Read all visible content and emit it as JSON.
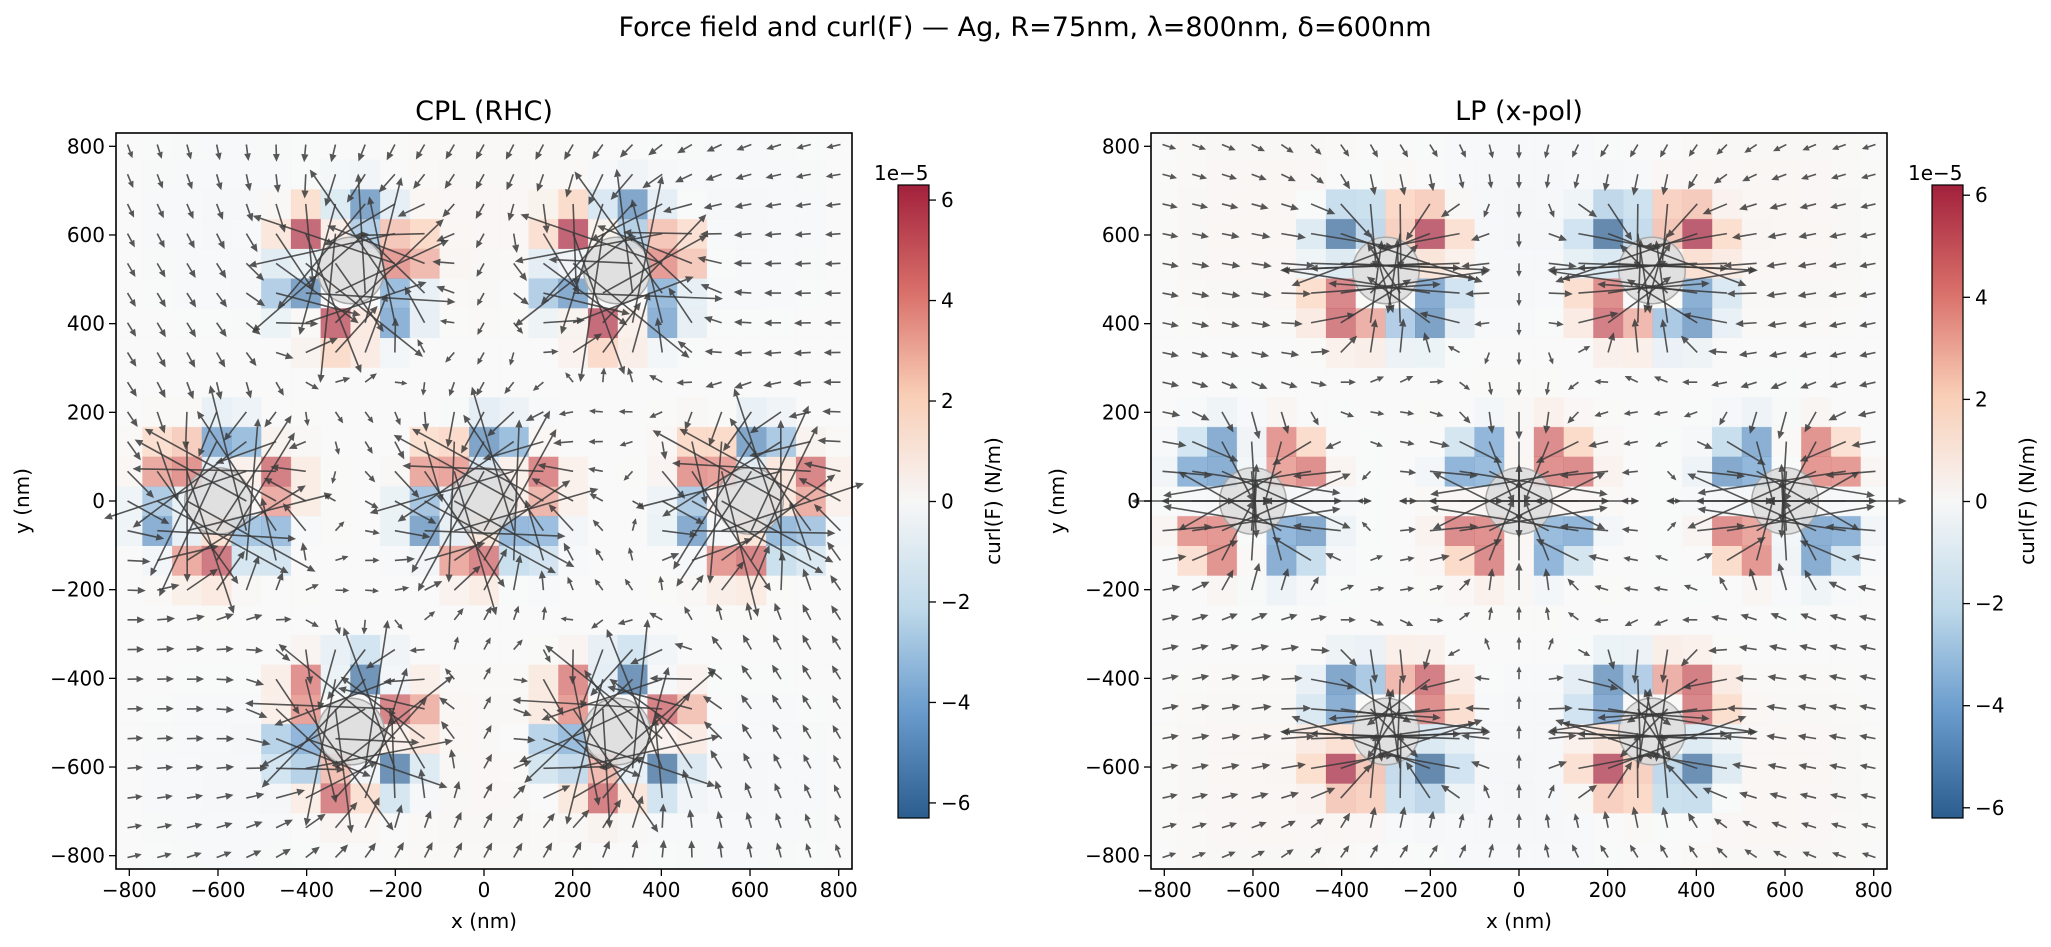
{
  "figure": {
    "suptitle": "Force field and curl(F) — Ag, R=75nm, λ=800nm, δ=600nm"
  },
  "colorbar": {
    "label": "curl(F) (N/m)",
    "offset_text": "1e−5",
    "colors": [
      "#2b5d8f",
      "#6a9ccd",
      "#bed9ea",
      "#f7f7f7",
      "#f9cdb5",
      "#d9706a",
      "#a2213c"
    ],
    "particle_fill": "#dcdcdc",
    "particle_stroke": "#a9a9a9",
    "arrow_color": "#3a3a3a"
  },
  "chart_data": [
    {
      "type": "heatmap",
      "title": "CPL (RHC)",
      "xlabel": "x (nm)",
      "ylabel": "y (nm)",
      "xlim": [
        -830,
        830
      ],
      "ylim": [
        -830,
        830
      ],
      "xticks": [
        -800,
        -600,
        -400,
        -200,
        0,
        200,
        400,
        600,
        800
      ],
      "yticks": [
        -800,
        -600,
        -400,
        -200,
        0,
        200,
        400,
        600,
        800
      ],
      "xtick_labels": [
        "−800",
        "−600",
        "−400",
        "−200",
        "0",
        "200",
        "400",
        "600",
        "800"
      ],
      "ytick_labels": [
        "−800",
        "−600",
        "−400",
        "−200",
        "0",
        "200",
        "400",
        "600",
        "800"
      ],
      "grid_step": 67,
      "particle_radius": 75,
      "particles": [
        [
          -300,
          520
        ],
        [
          300,
          520
        ],
        [
          -600,
          0
        ],
        [
          0,
          0
        ],
        [
          600,
          0
        ],
        [
          -300,
          -520
        ],
        [
          300,
          -520
        ]
      ],
      "polarization": "CPL",
      "colorbar_ticks": [
        6,
        4,
        2,
        0,
        -2,
        -4,
        -6
      ],
      "colorbar_tick_labels": [
        "6",
        "4",
        "2",
        "0",
        "−2",
        "−4",
        "−6"
      ],
      "colorbar_range": [
        -6.3,
        6.3
      ],
      "curl_scale": "×1e−5 N/m"
    },
    {
      "type": "heatmap",
      "title": "LP (x-pol)",
      "xlabel": "x (nm)",
      "ylabel": "y (nm)",
      "xlim": [
        -830,
        830
      ],
      "ylim": [
        -830,
        830
      ],
      "xticks": [
        -800,
        -600,
        -400,
        -200,
        0,
        200,
        400,
        600,
        800
      ],
      "yticks": [
        -800,
        -600,
        -400,
        -200,
        0,
        200,
        400,
        600,
        800
      ],
      "xtick_labels": [
        "−800",
        "−600",
        "−400",
        "−200",
        "0",
        "200",
        "400",
        "600",
        "800"
      ],
      "ytick_labels": [
        "−800",
        "−600",
        "−400",
        "−200",
        "0",
        "200",
        "400",
        "600",
        "800"
      ],
      "grid_step": 67,
      "particle_radius": 75,
      "particles": [
        [
          -300,
          520
        ],
        [
          300,
          520
        ],
        [
          -600,
          0
        ],
        [
          0,
          0
        ],
        [
          600,
          0
        ],
        [
          -300,
          -520
        ],
        [
          300,
          -520
        ]
      ],
      "polarization": "LP",
      "colorbar_ticks": [
        6,
        4,
        2,
        0,
        -2,
        -4,
        -6
      ],
      "colorbar_tick_labels": [
        "6",
        "4",
        "2",
        "0",
        "−2",
        "−4",
        "−6"
      ],
      "colorbar_range": [
        -6.2,
        6.2
      ],
      "curl_scale": "×1e−5 N/m"
    }
  ]
}
